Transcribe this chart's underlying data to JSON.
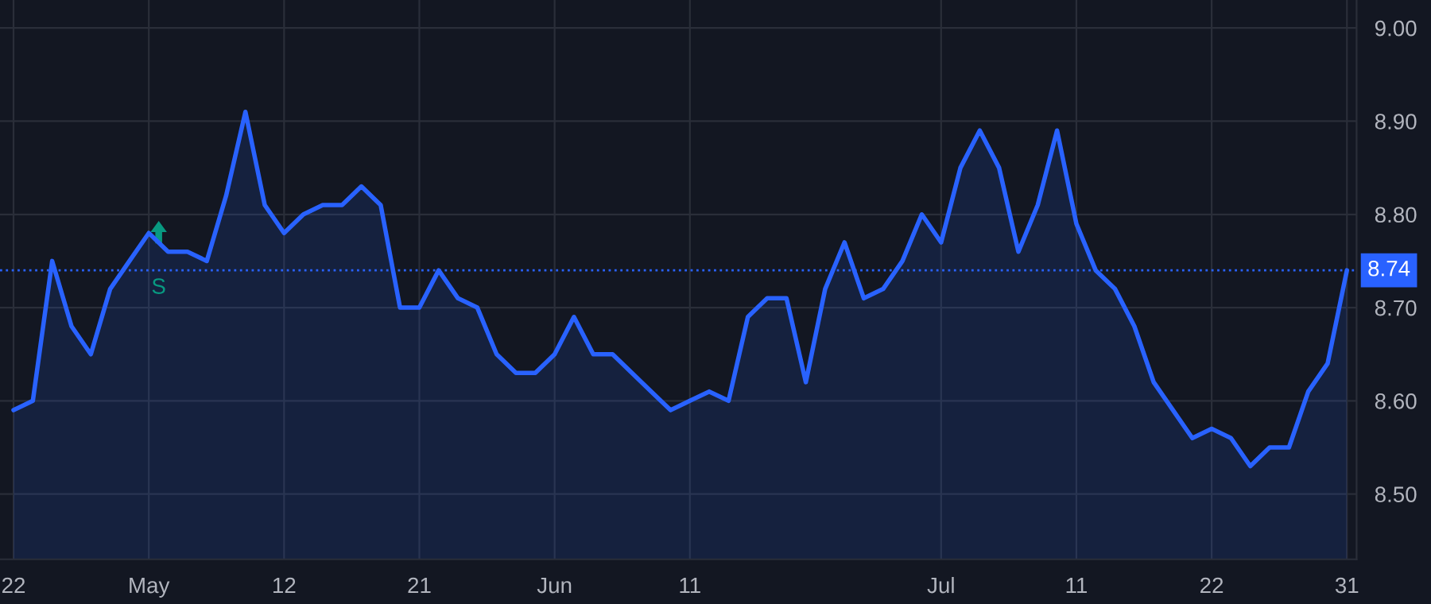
{
  "chart_data": {
    "type": "area",
    "categories": [
      "22",
      null,
      null,
      null,
      null,
      null,
      null,
      "May",
      null,
      null,
      null,
      null,
      null,
      null,
      "12",
      null,
      null,
      null,
      null,
      null,
      null,
      "21",
      null,
      null,
      null,
      null,
      null,
      null,
      "Jun",
      null,
      null,
      null,
      null,
      null,
      null,
      "11",
      null,
      null,
      null,
      null,
      null,
      null,
      null,
      null,
      null,
      null,
      null,
      null,
      "Jul",
      null,
      null,
      null,
      null,
      null,
      null,
      "11",
      null,
      null,
      null,
      null,
      null,
      null,
      "22",
      null,
      null,
      null,
      null,
      null,
      null,
      "31"
    ],
    "series": [
      {
        "color": "#2962ff",
        "values": [
          8.59,
          8.6,
          8.75,
          8.68,
          8.65,
          8.72,
          8.75,
          8.78,
          8.76,
          8.76,
          8.75,
          8.82,
          8.91,
          8.81,
          8.78,
          8.8,
          8.81,
          8.81,
          8.83,
          8.81,
          8.7,
          8.7,
          8.74,
          8.71,
          8.7,
          8.65,
          8.63,
          8.63,
          8.65,
          8.69,
          8.65,
          8.65,
          8.63,
          8.61,
          8.59,
          8.6,
          8.61,
          8.6,
          8.69,
          8.71,
          8.71,
          8.62,
          8.72,
          8.77,
          8.71,
          8.72,
          8.75,
          8.8,
          8.77,
          8.85,
          8.89,
          8.85,
          8.76,
          8.81,
          8.89,
          8.79,
          8.74,
          8.72,
          8.68,
          8.62,
          8.59,
          8.56,
          8.57,
          8.56,
          8.53,
          8.55,
          8.55,
          8.61,
          8.64,
          8.74
        ]
      }
    ],
    "ylim": [
      8.43,
      9.03
    ],
    "yticks": [
      {
        "value": 8.5,
        "label": "8.50"
      },
      {
        "value": 8.6,
        "label": "8.60"
      },
      {
        "value": 8.7,
        "label": "8.70"
      },
      {
        "value": 8.8,
        "label": "8.80"
      },
      {
        "value": 8.9,
        "label": "8.90"
      },
      {
        "value": 9.0,
        "label": "9.00"
      }
    ],
    "ref_lines": [
      {
        "axis": "y",
        "value": 8.74,
        "label": "8.74",
        "color": "#2962ff",
        "line_style": "dotted"
      }
    ],
    "annotations": [
      "S"
    ],
    "grid": true
  }
}
